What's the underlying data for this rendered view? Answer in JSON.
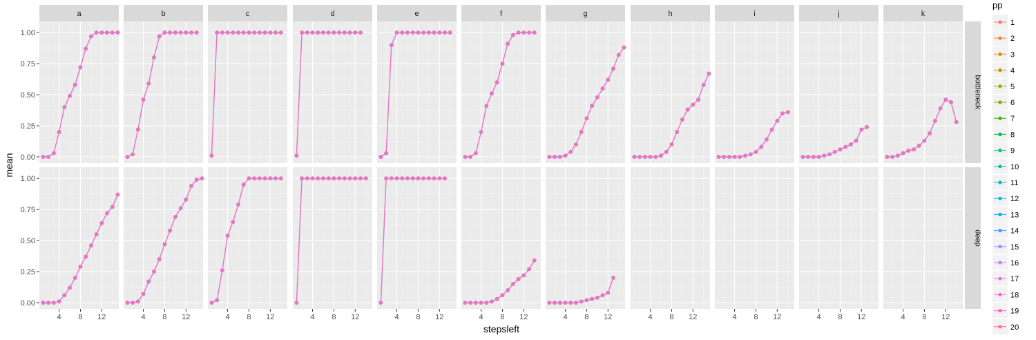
{
  "chart_data": {
    "type": "line",
    "xlabel": "stepsleft",
    "ylabel": "mean",
    "x_ticks": [
      4,
      8,
      12
    ],
    "y_ticks": [
      "0.00",
      "0.25",
      "0.50",
      "0.75",
      "1.00"
    ],
    "xlim": [
      0.3,
      15.2
    ],
    "ylim": [
      -0.05,
      1.09
    ],
    "columns": [
      "a",
      "b",
      "c",
      "d",
      "e",
      "f",
      "g",
      "h",
      "i",
      "j",
      "k"
    ],
    "rows": [
      "bottleneck",
      "deep"
    ],
    "legend_title": "pp",
    "legend_labels": [
      "1",
      "2",
      "3",
      "4",
      "5",
      "6",
      "7",
      "8",
      "9",
      "10",
      "11",
      "12",
      "13",
      "14",
      "15",
      "16",
      "17",
      "18",
      "19",
      "20"
    ],
    "series_colors": [
      "#F8766D",
      "#EA8331",
      "#D89000",
      "#C09B00",
      "#A3A500",
      "#7CAE00",
      "#39B600",
      "#00BB4E",
      "#00BF7D",
      "#00C1A3",
      "#00BFC4",
      "#00BAE0",
      "#00B0F6",
      "#35A2FF",
      "#9590FF",
      "#C77CFF",
      "#E76BF3",
      "#FA62DB",
      "#FF62BC",
      "#FF6C91"
    ],
    "panels": {
      "a|bottleneck": [
        [
          1,
          0.0
        ],
        [
          2,
          0.0
        ],
        [
          3,
          0.03
        ],
        [
          4,
          0.2
        ],
        [
          5,
          0.4
        ],
        [
          6,
          0.49
        ],
        [
          7,
          0.58
        ],
        [
          8,
          0.72
        ],
        [
          9,
          0.87
        ],
        [
          10,
          0.97
        ],
        [
          11,
          1.0
        ],
        [
          12,
          1.0
        ],
        [
          13,
          1.0
        ],
        [
          14,
          1.0
        ],
        [
          15,
          1.0
        ]
      ],
      "b|bottleneck": [
        [
          1,
          0.0
        ],
        [
          2,
          0.02
        ],
        [
          3,
          0.22
        ],
        [
          4,
          0.46
        ],
        [
          5,
          0.59
        ],
        [
          6,
          0.8
        ],
        [
          7,
          0.97
        ],
        [
          8,
          1.0
        ],
        [
          9,
          1.0
        ],
        [
          10,
          1.0
        ],
        [
          11,
          1.0
        ],
        [
          12,
          1.0
        ],
        [
          13,
          1.0
        ],
        [
          14,
          1.0
        ]
      ],
      "c|bottleneck": [
        [
          1,
          0.01
        ],
        [
          2,
          1.0
        ],
        [
          3,
          1.0
        ],
        [
          4,
          1.0
        ],
        [
          5,
          1.0
        ],
        [
          6,
          1.0
        ],
        [
          7,
          1.0
        ],
        [
          8,
          1.0
        ],
        [
          9,
          1.0
        ],
        [
          10,
          1.0
        ],
        [
          11,
          1.0
        ],
        [
          12,
          1.0
        ],
        [
          13,
          1.0
        ],
        [
          14,
          1.0
        ]
      ],
      "d|bottleneck": [
        [
          1,
          0.01
        ],
        [
          2,
          1.0
        ],
        [
          3,
          1.0
        ],
        [
          4,
          1.0
        ],
        [
          5,
          1.0
        ],
        [
          6,
          1.0
        ],
        [
          7,
          1.0
        ],
        [
          8,
          1.0
        ],
        [
          9,
          1.0
        ],
        [
          10,
          1.0
        ],
        [
          11,
          1.0
        ],
        [
          12,
          1.0
        ],
        [
          13,
          1.0
        ]
      ],
      "e|bottleneck": [
        [
          1,
          0.0
        ],
        [
          2,
          0.03
        ],
        [
          3,
          0.9
        ],
        [
          4,
          1.0
        ],
        [
          5,
          1.0
        ],
        [
          6,
          1.0
        ],
        [
          7,
          1.0
        ],
        [
          8,
          1.0
        ],
        [
          9,
          1.0
        ],
        [
          10,
          1.0
        ],
        [
          11,
          1.0
        ],
        [
          12,
          1.0
        ],
        [
          13,
          1.0
        ],
        [
          14,
          1.0
        ]
      ],
      "f|bottleneck": [
        [
          1,
          0.0
        ],
        [
          2,
          0.0
        ],
        [
          3,
          0.03
        ],
        [
          4,
          0.2
        ],
        [
          5,
          0.41
        ],
        [
          6,
          0.51
        ],
        [
          7,
          0.6
        ],
        [
          8,
          0.75
        ],
        [
          9,
          0.91
        ],
        [
          10,
          0.98
        ],
        [
          11,
          1.0
        ],
        [
          12,
          1.0
        ],
        [
          13,
          1.0
        ],
        [
          14,
          1.0
        ]
      ],
      "g|bottleneck": [
        [
          1,
          0.0
        ],
        [
          2,
          0.0
        ],
        [
          3,
          0.0
        ],
        [
          4,
          0.01
        ],
        [
          5,
          0.04
        ],
        [
          6,
          0.1
        ],
        [
          7,
          0.2
        ],
        [
          8,
          0.31
        ],
        [
          9,
          0.41
        ],
        [
          10,
          0.48
        ],
        [
          11,
          0.55
        ],
        [
          12,
          0.62
        ],
        [
          13,
          0.71
        ],
        [
          14,
          0.82
        ],
        [
          15,
          0.88
        ]
      ],
      "h|bottleneck": [
        [
          1,
          0.0
        ],
        [
          2,
          0.0
        ],
        [
          3,
          0.0
        ],
        [
          4,
          0.0
        ],
        [
          5,
          0.0
        ],
        [
          6,
          0.01
        ],
        [
          7,
          0.04
        ],
        [
          8,
          0.1
        ],
        [
          9,
          0.2
        ],
        [
          10,
          0.3
        ],
        [
          11,
          0.38
        ],
        [
          12,
          0.42
        ],
        [
          13,
          0.46
        ],
        [
          14,
          0.58
        ],
        [
          15,
          0.67
        ]
      ],
      "i|bottleneck": [
        [
          1,
          0.0
        ],
        [
          2,
          0.0
        ],
        [
          3,
          0.0
        ],
        [
          4,
          0.0
        ],
        [
          5,
          0.0
        ],
        [
          6,
          0.01
        ],
        [
          7,
          0.02
        ],
        [
          8,
          0.04
        ],
        [
          9,
          0.08
        ],
        [
          10,
          0.14
        ],
        [
          11,
          0.22
        ],
        [
          12,
          0.29
        ],
        [
          13,
          0.35
        ],
        [
          14,
          0.36
        ]
      ],
      "j|bottleneck": [
        [
          1,
          0.0
        ],
        [
          2,
          0.0
        ],
        [
          3,
          0.0
        ],
        [
          4,
          0.0
        ],
        [
          5,
          0.01
        ],
        [
          6,
          0.02
        ],
        [
          7,
          0.04
        ],
        [
          8,
          0.06
        ],
        [
          9,
          0.08
        ],
        [
          10,
          0.1
        ],
        [
          11,
          0.13
        ],
        [
          12,
          0.22
        ],
        [
          13,
          0.24
        ]
      ],
      "k|bottleneck": [
        [
          1,
          0.0
        ],
        [
          2,
          0.0
        ],
        [
          3,
          0.01
        ],
        [
          4,
          0.03
        ],
        [
          5,
          0.05
        ],
        [
          6,
          0.06
        ],
        [
          7,
          0.09
        ],
        [
          8,
          0.13
        ],
        [
          9,
          0.19
        ],
        [
          10,
          0.29
        ],
        [
          11,
          0.39
        ],
        [
          12,
          0.46
        ],
        [
          13,
          0.44
        ],
        [
          14,
          0.28
        ]
      ],
      "a|deep": [
        [
          1,
          0.0
        ],
        [
          2,
          0.0
        ],
        [
          3,
          0.0
        ],
        [
          4,
          0.01
        ],
        [
          5,
          0.06
        ],
        [
          6,
          0.12
        ],
        [
          7,
          0.2
        ],
        [
          8,
          0.29
        ],
        [
          9,
          0.37
        ],
        [
          10,
          0.46
        ],
        [
          11,
          0.55
        ],
        [
          12,
          0.64
        ],
        [
          13,
          0.72
        ],
        [
          14,
          0.77
        ],
        [
          15,
          0.87
        ]
      ],
      "b|deep": [
        [
          1,
          0.0
        ],
        [
          2,
          0.0
        ],
        [
          3,
          0.01
        ],
        [
          4,
          0.07
        ],
        [
          5,
          0.17
        ],
        [
          6,
          0.25
        ],
        [
          7,
          0.35
        ],
        [
          8,
          0.47
        ],
        [
          9,
          0.58
        ],
        [
          10,
          0.69
        ],
        [
          11,
          0.76
        ],
        [
          12,
          0.83
        ],
        [
          13,
          0.94
        ],
        [
          14,
          0.99
        ],
        [
          15,
          1.0
        ]
      ],
      "c|deep": [
        [
          1,
          0.0
        ],
        [
          2,
          0.02
        ],
        [
          3,
          0.26
        ],
        [
          4,
          0.54
        ],
        [
          5,
          0.65
        ],
        [
          6,
          0.79
        ],
        [
          7,
          0.95
        ],
        [
          8,
          1.0
        ],
        [
          9,
          1.0
        ],
        [
          10,
          1.0
        ],
        [
          11,
          1.0
        ],
        [
          12,
          1.0
        ],
        [
          13,
          1.0
        ],
        [
          14,
          1.0
        ]
      ],
      "d|deep": [
        [
          1,
          0.0
        ],
        [
          2,
          1.0
        ],
        [
          3,
          1.0
        ],
        [
          4,
          1.0
        ],
        [
          5,
          1.0
        ],
        [
          6,
          1.0
        ],
        [
          7,
          1.0
        ],
        [
          8,
          1.0
        ],
        [
          9,
          1.0
        ],
        [
          10,
          1.0
        ],
        [
          11,
          1.0
        ],
        [
          12,
          1.0
        ],
        [
          13,
          1.0
        ],
        [
          14,
          1.0
        ]
      ],
      "e|deep": [
        [
          1,
          0.0
        ],
        [
          2,
          1.0
        ],
        [
          3,
          1.0
        ],
        [
          4,
          1.0
        ],
        [
          5,
          1.0
        ],
        [
          6,
          1.0
        ],
        [
          7,
          1.0
        ],
        [
          8,
          1.0
        ],
        [
          9,
          1.0
        ],
        [
          10,
          1.0
        ],
        [
          11,
          1.0
        ],
        [
          12,
          1.0
        ],
        [
          13,
          1.0
        ]
      ],
      "f|deep": [
        [
          1,
          0.0
        ],
        [
          2,
          0.0
        ],
        [
          3,
          0.0
        ],
        [
          4,
          0.0
        ],
        [
          5,
          0.0
        ],
        [
          6,
          0.01
        ],
        [
          7,
          0.03
        ],
        [
          8,
          0.06
        ],
        [
          9,
          0.1
        ],
        [
          10,
          0.15
        ],
        [
          11,
          0.19
        ],
        [
          12,
          0.22
        ],
        [
          13,
          0.27
        ],
        [
          14,
          0.34
        ]
      ],
      "g|deep": [
        [
          1,
          0.0
        ],
        [
          2,
          0.0
        ],
        [
          3,
          0.0
        ],
        [
          4,
          0.0
        ],
        [
          5,
          0.0
        ],
        [
          6,
          0.0
        ],
        [
          7,
          0.01
        ],
        [
          8,
          0.02
        ],
        [
          9,
          0.03
        ],
        [
          10,
          0.04
        ],
        [
          11,
          0.06
        ],
        [
          12,
          0.08
        ],
        [
          13,
          0.2
        ]
      ],
      "h|deep": [],
      "i|deep": [],
      "j|deep": [],
      "k|deep": []
    }
  }
}
